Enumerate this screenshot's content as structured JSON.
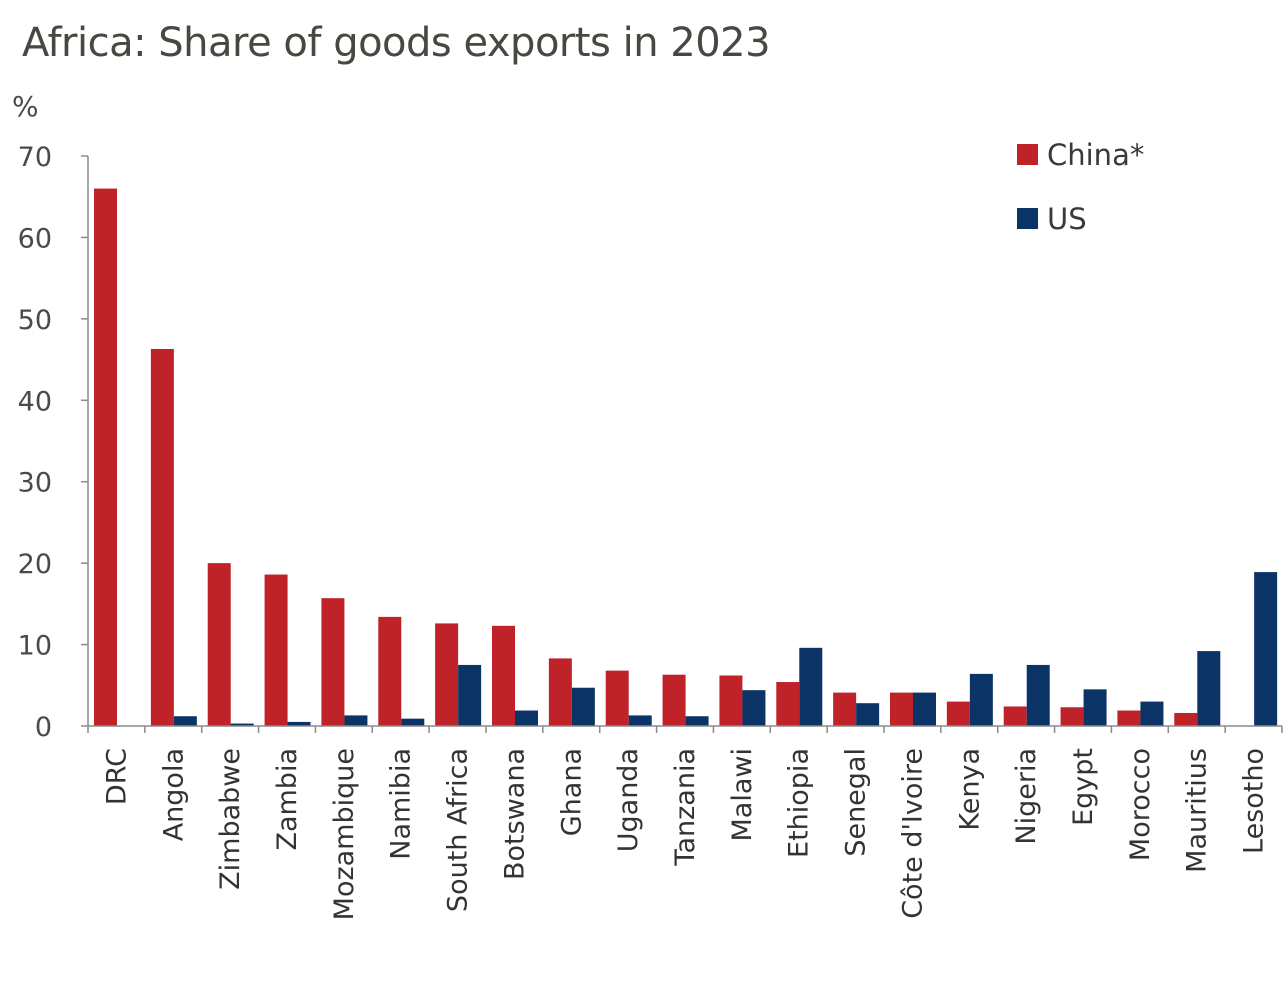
{
  "chart_data": {
    "type": "bar",
    "title": "Africa: Share of goods exports in 2023",
    "ylabel": "%",
    "xlabel": "",
    "ylim": [
      0,
      70
    ],
    "yticks": [
      0,
      10,
      20,
      30,
      40,
      50,
      60,
      70
    ],
    "grid": false,
    "legend_position": "top-right",
    "categories": [
      "DRC",
      "Angola",
      "Zimbabwe",
      "Zambia",
      "Mozambique",
      "Namibia",
      "South Africa",
      "Botswana",
      "Ghana",
      "Uganda",
      "Tanzania",
      "Malawi",
      "Ethiopia",
      "Senegal",
      "Côte d'Ivoire",
      "Kenya",
      "Nigeria",
      "Egypt",
      "Morocco",
      "Mauritius",
      "Lesotho"
    ],
    "series": [
      {
        "name": "China*",
        "color": "#c0222a",
        "values": [
          66.0,
          46.3,
          20.0,
          18.6,
          15.7,
          13.4,
          12.6,
          12.3,
          8.3,
          6.8,
          6.3,
          6.2,
          5.4,
          4.1,
          4.1,
          3.0,
          2.4,
          2.3,
          1.9,
          1.6,
          0
        ]
      },
      {
        "name": "US",
        "color": "#0b3366",
        "values": [
          0,
          1.2,
          0.3,
          0.5,
          1.3,
          0.9,
          7.5,
          1.9,
          4.7,
          1.3,
          1.2,
          4.4,
          9.6,
          2.8,
          4.1,
          6.4,
          7.5,
          4.5,
          3.0,
          9.2,
          18.9
        ]
      }
    ]
  }
}
